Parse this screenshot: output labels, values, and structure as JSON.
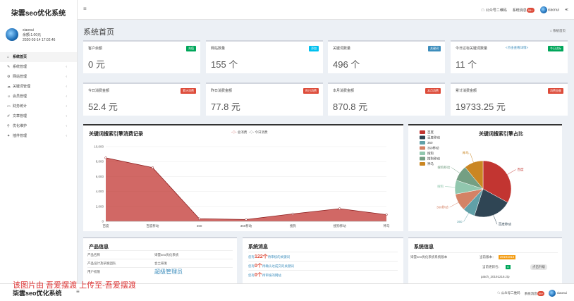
{
  "sidebar": {
    "brand": "柒雲seo优化系统",
    "user": {
      "name": "xiaonui",
      "balance": "余额:1.00元",
      "date": "2020-03-14 17:02:46"
    },
    "items": [
      {
        "icon": "home",
        "label": "系统首页"
      },
      {
        "icon": "wrench",
        "label": "系统管理"
      },
      {
        "icon": "gear",
        "label": "网站管理"
      },
      {
        "icon": "cloud",
        "label": "关键词管理"
      },
      {
        "icon": "users",
        "label": "会员管理"
      },
      {
        "icon": "credit-card",
        "label": "财务统计"
      },
      {
        "icon": "edit",
        "label": "文章管理"
      },
      {
        "icon": "tag",
        "label": "优化维护"
      },
      {
        "icon": "wand",
        "label": "插件管理"
      }
    ]
  },
  "topbar": {
    "menu_icon": "≡",
    "qr": "公众号二维码",
    "msgs": "系统消息",
    "msg_count": "99+",
    "user": "xiaonui",
    "share": "≪"
  },
  "page": {
    "title": "系统首页",
    "breadcrumb": "系统首页"
  },
  "cards": [
    {
      "label": "客户余额",
      "tag": "充值",
      "tag_color": "#00a65a",
      "value": "0 元"
    },
    {
      "label": "网站数量",
      "tag": "添加",
      "tag_color": "#00c0ef",
      "value": "155 个"
    },
    {
      "label": "关键词数量",
      "tag": "关键词",
      "tag_color": "#3c8dbc",
      "value": "496 个"
    },
    {
      "label": "今日达标关键词数量",
      "hint": "<点击查看详情>",
      "tag": "今日达标",
      "tag_color": "#00a65a",
      "value": "11 个"
    },
    {
      "label": "今日消费金额",
      "tag": "累计消费",
      "tag_color": "#dd4b39",
      "value": "52.4 元"
    },
    {
      "label": "昨日消费金额",
      "tag": "昨日消费",
      "tag_color": "#dd4b39",
      "value": "77.8 元"
    },
    {
      "label": "本月消费金额",
      "tag": "本月消费",
      "tag_color": "#dd4b39",
      "value": "870.8 元"
    },
    {
      "label": "累计消费金额",
      "tag": "消费金额",
      "tag_color": "#dd4b39",
      "value": "19733.25 元"
    }
  ],
  "chart_data": [
    {
      "type": "area",
      "title": "关键词搜索引擎消费记录",
      "legend": [
        "总消费",
        "今日消费"
      ],
      "categories": [
        "百度",
        "百度移动",
        "360",
        "360移动",
        "搜狗",
        "搜狗移动",
        "神马"
      ],
      "values": [
        8500,
        7200,
        350,
        250,
        1000,
        1700,
        900
      ],
      "ylim": [
        0,
        10000
      ],
      "yticks": [
        "10,000",
        "8,000",
        "6,000",
        "4,000",
        "2,000",
        "0"
      ]
    },
    {
      "type": "pie",
      "title": "关键词搜索引擎占比",
      "categories": [
        "百度",
        "百度移动",
        "360",
        "360移动",
        "搜狗",
        "搜狗移动",
        "神马"
      ],
      "values": [
        33,
        22,
        7,
        10,
        8,
        9,
        11
      ],
      "colors": [
        "#c23531",
        "#2f4554",
        "#61a0a8",
        "#d48265",
        "#91c7ae",
        "#749f83",
        "#ca8622"
      ]
    }
  ],
  "product": {
    "title": "产品信息",
    "rows": [
      [
        "产品名称",
        "柒雲seo优化系统"
      ],
      [
        "产品设计及研发团队",
        "合土研发"
      ],
      [
        "用户权限",
        "超级管理员"
      ]
    ]
  },
  "messages": {
    "title": "系统消息",
    "items": [
      {
        "pre": "您有",
        "num": "122个",
        "post": "待审核的关键词"
      },
      {
        "pre": "您有",
        "num": "0个",
        "post": "待确认达成交的关键词"
      },
      {
        "pre": "您有",
        "num": "0个",
        "post": "待审核的网站"
      }
    ]
  },
  "sysinfo": {
    "title": "系统信息",
    "row1_label": "柒雲seo优化系统系统版本",
    "row1_cur": "当前版本：",
    "row1_ver": "20191013",
    "row2_label": "当前更新包：",
    "row2_val": "4",
    "row2_btn": "点击升级",
    "patch": "patch_20191216.zip"
  },
  "watermark": "该图片由 吾爱摆渡 上传至-吾爱摆渡",
  "footer": {
    "brand": "柒雲seo优化系统",
    "qr": "公众号二维码",
    "msgs": "系统消息",
    "user": "xiaonui"
  }
}
